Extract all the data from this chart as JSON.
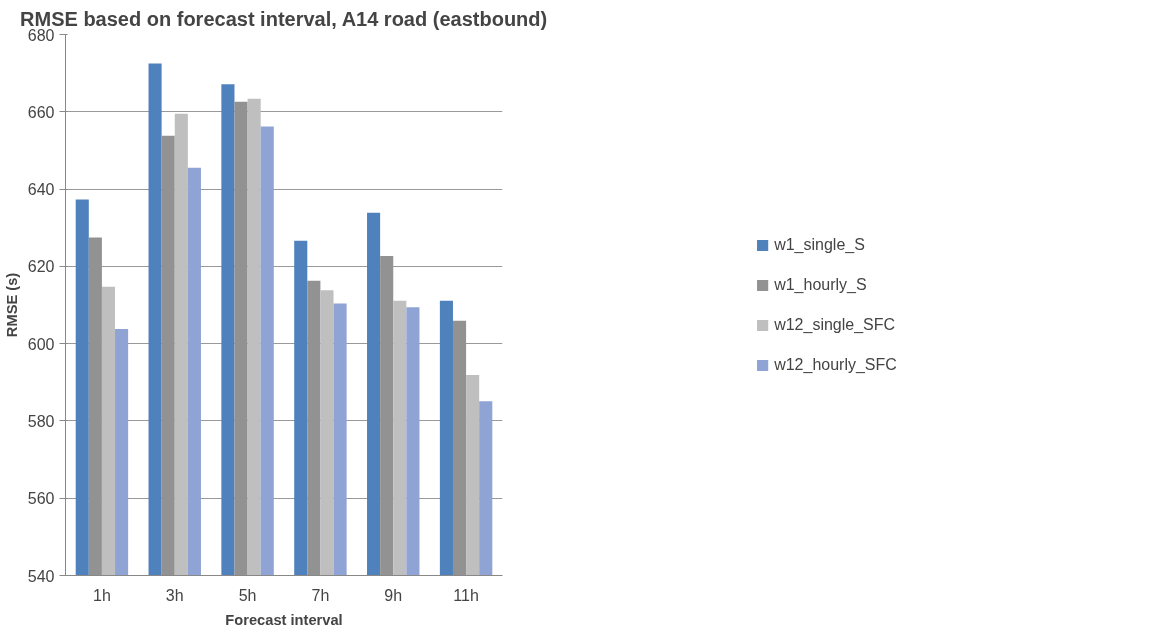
{
  "chart_data": {
    "type": "bar",
    "title": "RMSE based on forecast interval, A14 road (eastbound)",
    "xlabel": "Forecast interval",
    "ylabel": "RMSE (s)",
    "categories": [
      "1h",
      "3h",
      "5h",
      "7h",
      "9h",
      "11h"
    ],
    "series": [
      {
        "name": "w1_single_S",
        "color": "#4f81bd",
        "values": [
          637.3,
          672.5,
          667.1,
          626.6,
          633.9,
          611.1
        ]
      },
      {
        "name": "w1_hourly_S",
        "color": "#929292",
        "values": [
          627.5,
          653.8,
          662.6,
          616.3,
          622.7,
          605.9
        ]
      },
      {
        "name": "w12_single_SFC",
        "color": "#bfbfbf",
        "values": [
          614.7,
          659.5,
          663.4,
          613.8,
          611.1,
          591.9
        ]
      },
      {
        "name": "w12_hourly_SFC",
        "color": "#8fa4d4",
        "values": [
          603.8,
          645.5,
          656.2,
          610.4,
          609.4,
          585.1
        ]
      }
    ],
    "ylim": [
      540,
      680
    ],
    "yticks": [
      540,
      560,
      580,
      600,
      620,
      640,
      660,
      680
    ],
    "grid": "y",
    "legend": "right"
  }
}
